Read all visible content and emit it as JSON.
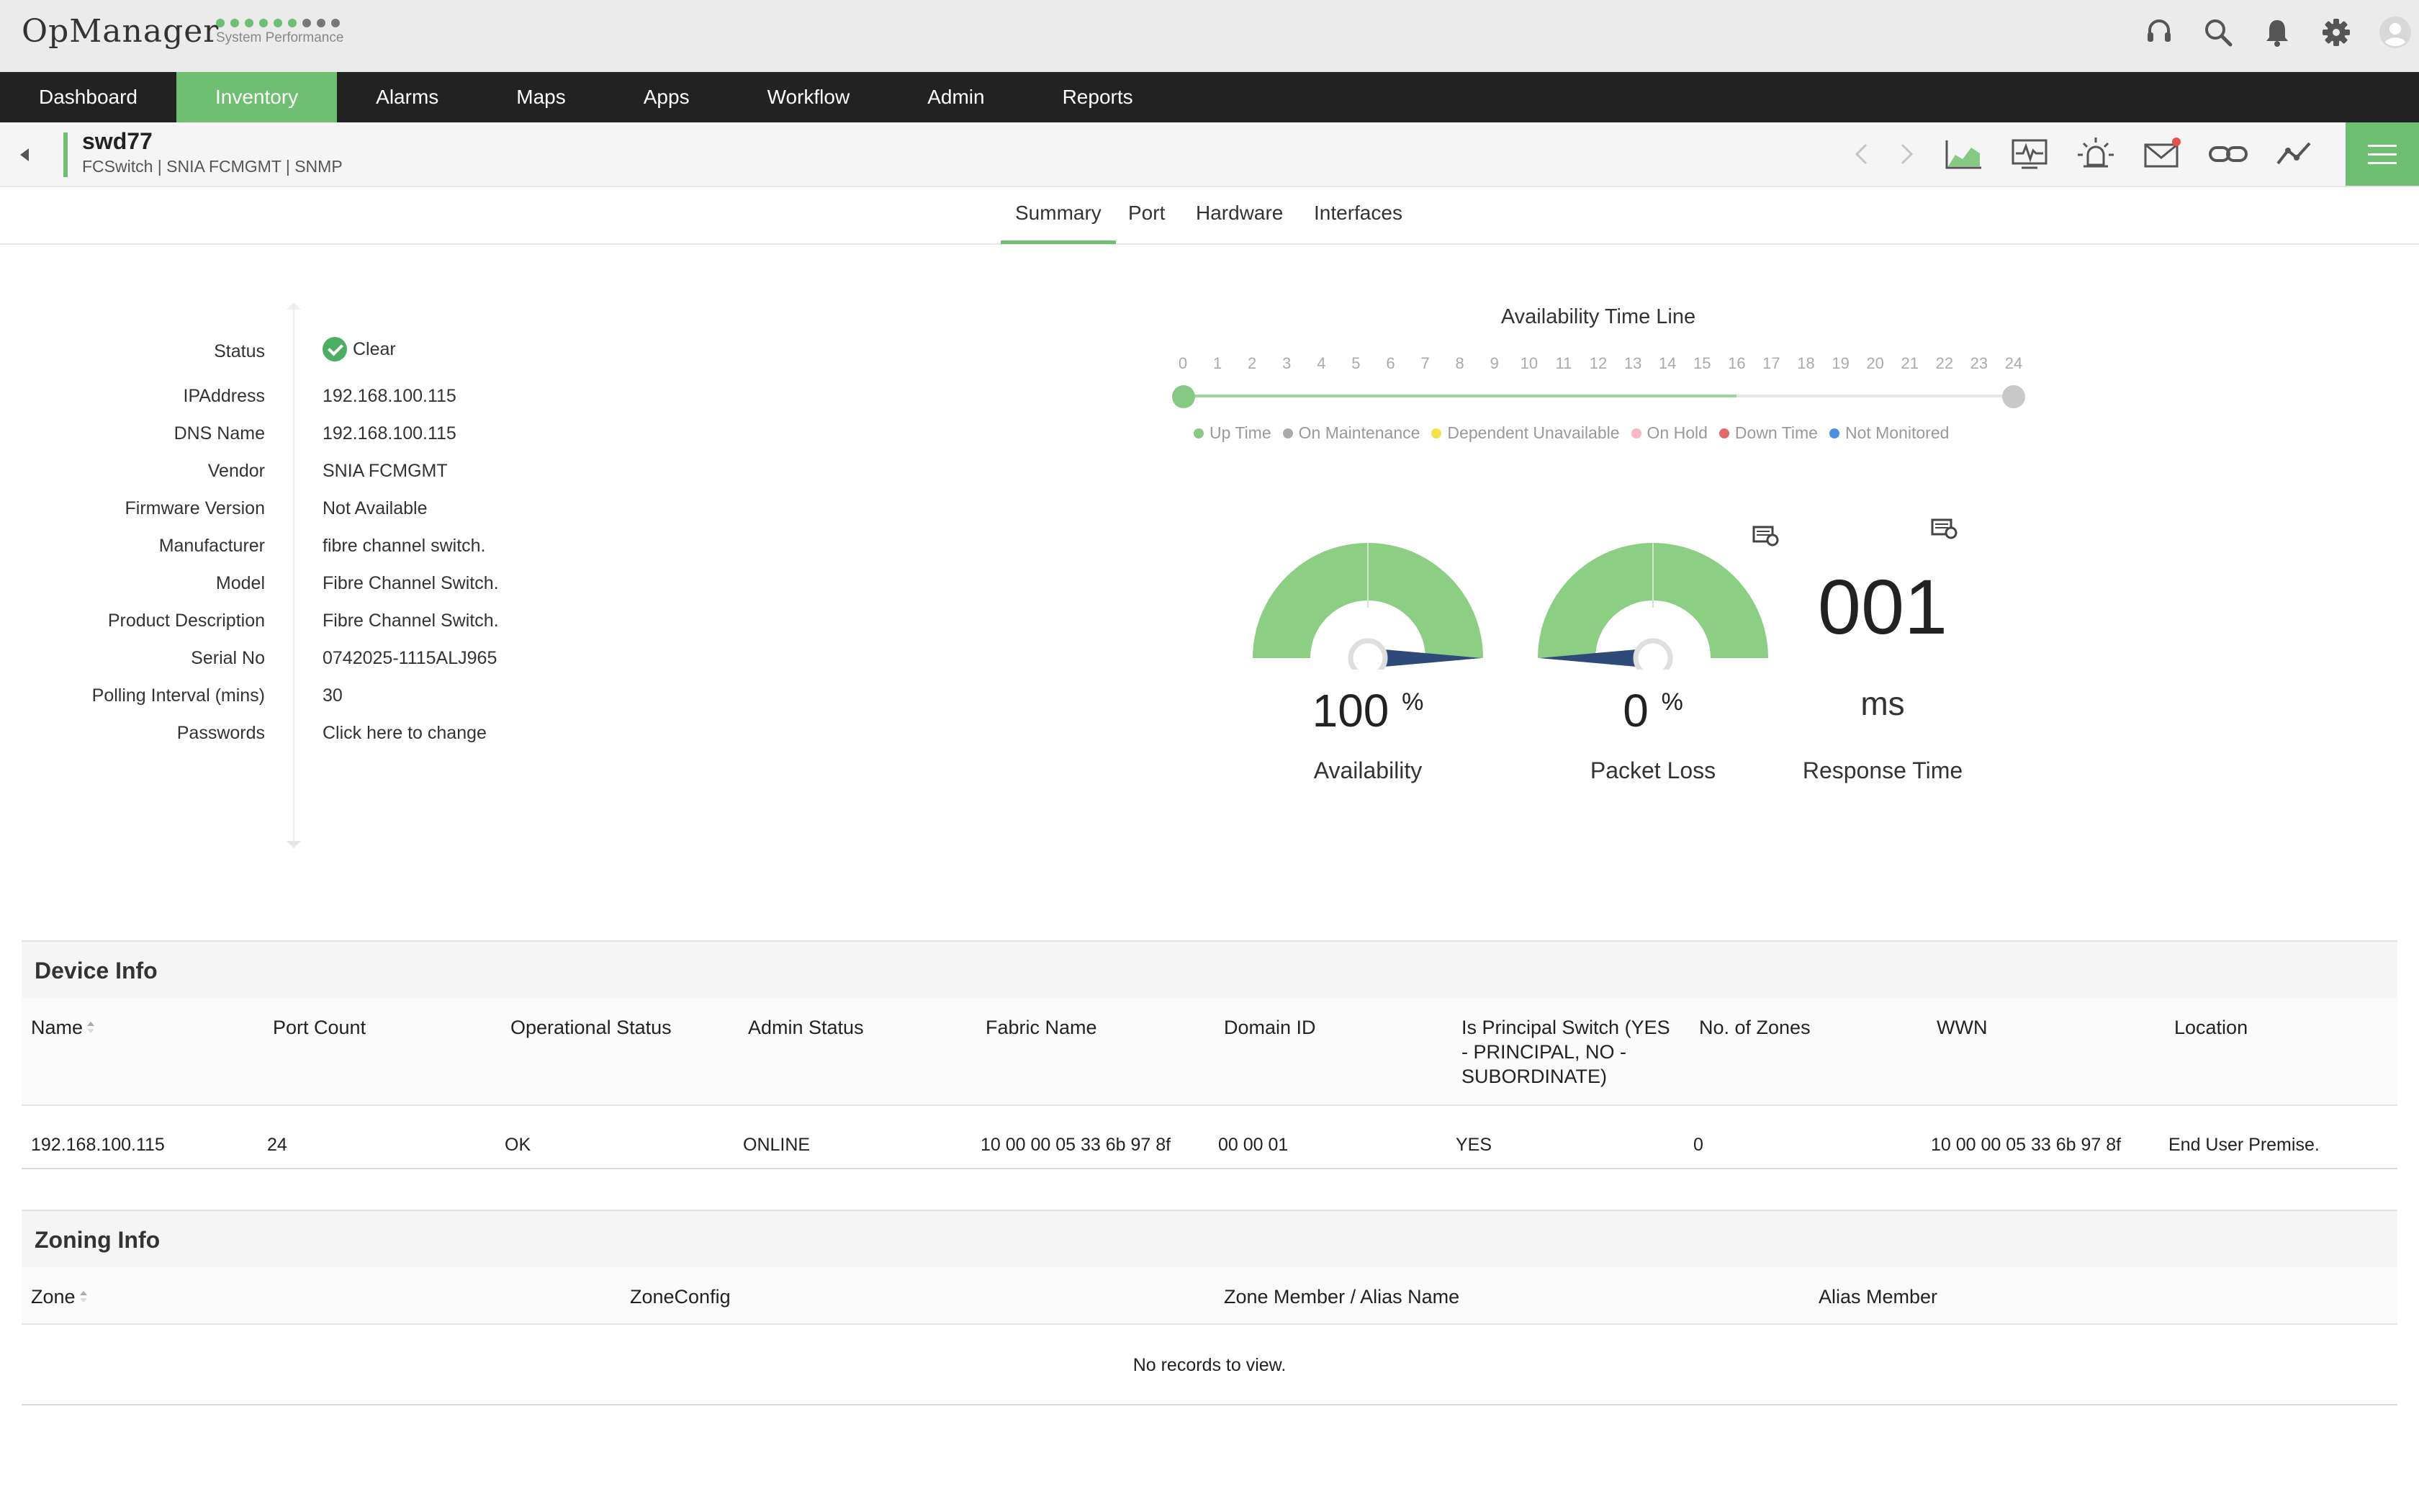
{
  "app": {
    "logo": "OpManager",
    "subtitle": "System Performance",
    "dot_colors": [
      "#6ebf72",
      "#6ebf72",
      "#6ebf72",
      "#6ebf72",
      "#6ebf72",
      "#6ebf72",
      "#777777",
      "#777777",
      "#777777"
    ]
  },
  "header_icons": [
    "headset-icon",
    "search-icon",
    "bell-icon",
    "gear-icon",
    "user-avatar-icon"
  ],
  "nav": {
    "items": [
      {
        "label": "Dashboard"
      },
      {
        "label": "Inventory",
        "active": true
      },
      {
        "label": "Alarms"
      },
      {
        "label": "Maps"
      },
      {
        "label": "Apps"
      },
      {
        "label": "Workflow"
      },
      {
        "label": "Admin"
      },
      {
        "label": "Reports"
      }
    ]
  },
  "device": {
    "name": "swd77",
    "meta": "FCSwitch | SNIA FCMGMT  | SNMP",
    "tool_icons": [
      "chevron-left-icon",
      "chevron-right-icon",
      "area-chart-icon",
      "monitor-icon",
      "alarm-icon",
      "mail-icon",
      "link-icon",
      "graph-icon",
      "hamburger-menu-icon"
    ]
  },
  "tabs": [
    {
      "label": "Summary",
      "active": true
    },
    {
      "label": "Port"
    },
    {
      "label": "Hardware"
    },
    {
      "label": "Interfaces"
    }
  ],
  "properties": [
    {
      "label": "Status",
      "value": "Clear",
      "icon": "check-circle-icon"
    },
    {
      "label": "IPAddress",
      "value": "192.168.100.115"
    },
    {
      "label": "DNS Name",
      "value": "192.168.100.115"
    },
    {
      "label": "Vendor",
      "value": "SNIA FCMGMT"
    },
    {
      "label": "Firmware Version",
      "value": "Not Available"
    },
    {
      "label": "Manufacturer",
      "value": "fibre channel switch."
    },
    {
      "label": "Model",
      "value": "Fibre Channel Switch."
    },
    {
      "label": "Product Description",
      "value": "Fibre Channel Switch."
    },
    {
      "label": "Serial No",
      "value": "0742025-1115ALJ965"
    },
    {
      "label": "Polling Interval (mins)",
      "value": "30"
    },
    {
      "label": "Passwords",
      "value": "Click here to change",
      "link": true
    }
  ],
  "timeline": {
    "title": "Availability Time Line",
    "hours": [
      "0",
      "1",
      "2",
      "3",
      "4",
      "5",
      "6",
      "7",
      "8",
      "9",
      "10",
      "11",
      "12",
      "13",
      "14",
      "15",
      "16",
      "17",
      "18",
      "19",
      "20",
      "21",
      "22",
      "23",
      "24"
    ],
    "up_until_hour": 16,
    "legend": [
      {
        "label": "Up Time",
        "color": "#86c984"
      },
      {
        "label": "On Maintenance",
        "color": "#aaaaaa"
      },
      {
        "label": "Dependent Unavailable",
        "color": "#f3e04a"
      },
      {
        "label": "On Hold",
        "color": "#f7b8c0"
      },
      {
        "label": "Down Time",
        "color": "#e06a6a"
      },
      {
        "label": "Not Monitored",
        "color": "#4a90e2"
      }
    ]
  },
  "gauges": {
    "availability": {
      "value": "100",
      "unit": "%",
      "label": "Availability",
      "fraction": 1.0
    },
    "packet_loss": {
      "value": "0",
      "unit": "%",
      "label": "Packet Loss",
      "fraction": 0.0
    },
    "response_time": {
      "value": "001",
      "unit": "ms",
      "label": "Response Time"
    },
    "gauge_color": "#8ccf84",
    "needle_color": "#2e4a78"
  },
  "device_info": {
    "title": "Device Info",
    "columns": [
      "Name",
      "Port Count",
      "Operational Status",
      "Admin Status",
      "Fabric Name",
      "Domain ID",
      "Is Principal Switch (YES - PRINCIPAL, NO - SUBORDINATE)",
      "No. of Zones",
      "WWN",
      "Location"
    ],
    "rows": [
      [
        "192.168.100.115",
        "24",
        "OK",
        "ONLINE",
        "10 00 00 05 33 6b 97 8f",
        "00 00 01",
        "YES",
        "0",
        "10 00 00 05 33 6b 97 8f",
        "End User Premise."
      ]
    ]
  },
  "zoning_info": {
    "title": "Zoning Info",
    "columns": [
      "Zone",
      "ZoneConfig",
      "Zone Member / Alias Name",
      "Alias Member"
    ],
    "empty_text": "No records to view."
  }
}
